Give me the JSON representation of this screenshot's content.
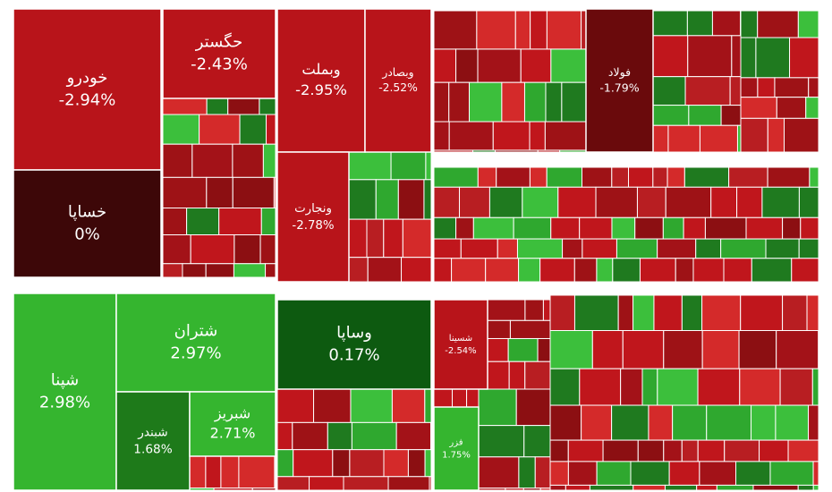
{
  "chart_data": {
    "type": "treemap",
    "categories": [
      "خودرو",
      "خساپا",
      "حگستر",
      "وبملت",
      "وبصادر",
      "ونجارت",
      "فولاد",
      "شپنا",
      "شتران",
      "شبندر",
      "شبریز",
      "وساپا",
      "شسینا",
      "فزر"
    ],
    "values": [
      -2.94,
      0,
      -2.43,
      -2.95,
      -2.52,
      -2.78,
      -1.79,
      2.98,
      2.97,
      1.68,
      2.71,
      0.17,
      -2.54,
      1.75
    ],
    "value_labels": [
      "-2.94%",
      "0%",
      "-2.43%",
      "-2.95%",
      "-2.52%",
      "-2.78%",
      "-1.79%",
      "2.98%",
      "2.97%",
      "1.68%",
      "2.71%",
      "0.17%",
      "-2.54%",
      "1.75%"
    ],
    "colors": [
      "#b8141a",
      "#3d0708",
      "#b8141a",
      "#b8141a",
      "#b8141a",
      "#b8141a",
      "#6a0a0c",
      "#35b52f",
      "#35b52f",
      "#1e7a1a",
      "#35b52f",
      "#0d5a10",
      "#b8141a",
      "#35b52f"
    ]
  }
}
